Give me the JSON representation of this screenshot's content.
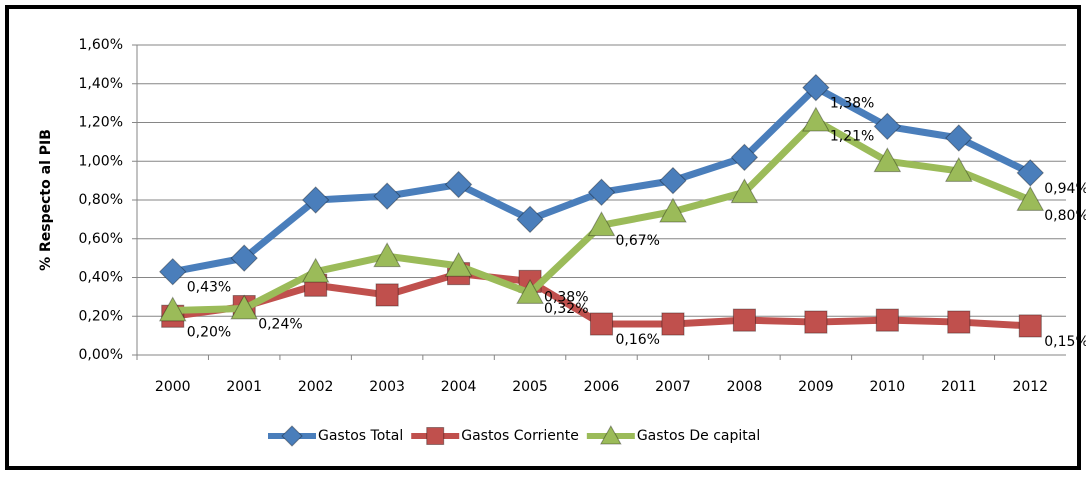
{
  "chart_data": {
    "type": "line",
    "y_axis_label": "% Respecto al PIB",
    "categories": [
      "2000",
      "2001",
      "2002",
      "2003",
      "2004",
      "2005",
      "2006",
      "2007",
      "2008",
      "2009",
      "2010",
      "2011",
      "2012"
    ],
    "series": [
      {
        "name": "Gastos Total",
        "color": "#4a7ebb",
        "marker": "diamond",
        "values": [
          0.43,
          0.5,
          0.8,
          0.82,
          0.88,
          0.7,
          0.84,
          0.9,
          1.02,
          1.38,
          1.18,
          1.12,
          0.94
        ],
        "value_labels": [
          "0,43%",
          null,
          null,
          null,
          null,
          null,
          null,
          null,
          null,
          "1,38%",
          null,
          null,
          "0,94%"
        ]
      },
      {
        "name": "Gastos Corriente",
        "color": "#c0504d",
        "marker": "square",
        "values": [
          0.2,
          0.25,
          0.36,
          0.31,
          0.42,
          0.38,
          0.16,
          0.16,
          0.18,
          0.17,
          0.18,
          0.17,
          0.15
        ],
        "value_labels": [
          "0,20%",
          null,
          null,
          null,
          null,
          "0,38%",
          "0,16%",
          null,
          null,
          null,
          null,
          null,
          "0,15%"
        ]
      },
      {
        "name": "Gastos De capital",
        "color": "#9bbb59",
        "marker": "triangle",
        "values": [
          0.23,
          0.24,
          0.43,
          0.51,
          0.46,
          0.32,
          0.67,
          0.74,
          0.84,
          1.21,
          1.0,
          0.95,
          0.8
        ],
        "value_labels": [
          null,
          "0,24%",
          null,
          null,
          null,
          "0,32%",
          "0,67%",
          null,
          null,
          "1,21%",
          null,
          null,
          "0,80%"
        ]
      }
    ],
    "ylim": [
      0,
      1.6
    ],
    "yticks": [
      {
        "value": 0,
        "label": "0,00%"
      },
      {
        "value": 0.2,
        "label": "0,20%"
      },
      {
        "value": 0.4,
        "label": "0,40%"
      },
      {
        "value": 0.6,
        "label": "0,60%"
      },
      {
        "value": 0.8,
        "label": "0,80%"
      },
      {
        "value": 1.0,
        "label": "1,00%"
      },
      {
        "value": 1.2,
        "label": "1,20%"
      },
      {
        "value": 1.4,
        "label": "1,40%"
      },
      {
        "value": 1.6,
        "label": "1,60%"
      }
    ],
    "grid": true,
    "legend": "bottom"
  }
}
